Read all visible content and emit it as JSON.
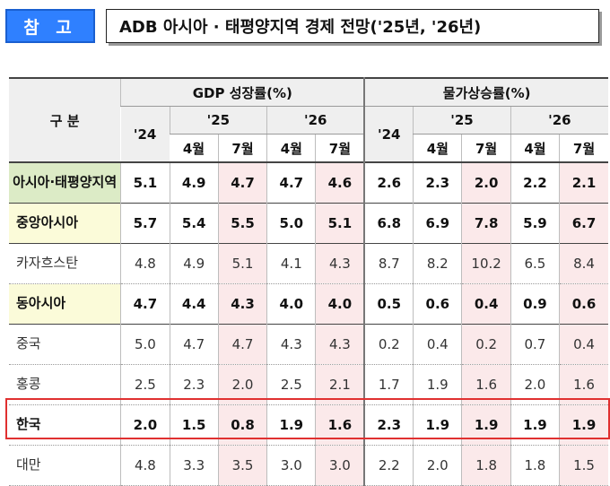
{
  "badge": "참 고",
  "title": "ADB 아시아 · 태평양지역 경제 전망('25년, '26년)",
  "header": {
    "category": "구  분",
    "gdp_group": "GDP 성장률(%)",
    "cpi_group": "물가상승률(%)",
    "years": [
      "'24",
      "'25",
      "'26"
    ],
    "months": [
      "4월",
      "7월"
    ]
  },
  "rows": [
    {
      "name": "아시아·태평양지역",
      "type": "region",
      "gdp": [
        "5.1",
        "4.9",
        "4.7",
        "4.7",
        "4.6"
      ],
      "cpi": [
        "2.6",
        "2.3",
        "2.0",
        "2.2",
        "2.1"
      ]
    },
    {
      "name": "중앙아시아",
      "type": "region",
      "gdp": [
        "5.7",
        "5.4",
        "5.5",
        "5.0",
        "5.1"
      ],
      "cpi": [
        "6.8",
        "6.9",
        "7.8",
        "5.9",
        "6.7"
      ]
    },
    {
      "name": "카자흐스탄",
      "type": "sub",
      "gdp": [
        "4.8",
        "4.9",
        "5.1",
        "4.1",
        "4.3"
      ],
      "cpi": [
        "8.7",
        "8.2",
        "10.2",
        "6.5",
        "8.4"
      ]
    },
    {
      "name": "동아시아",
      "type": "region",
      "gdp": [
        "4.7",
        "4.4",
        "4.3",
        "4.0",
        "4.0"
      ],
      "cpi": [
        "0.5",
        "0.6",
        "0.4",
        "0.9",
        "0.6"
      ]
    },
    {
      "name": "중국",
      "type": "sub",
      "gdp": [
        "5.0",
        "4.7",
        "4.7",
        "4.3",
        "4.3"
      ],
      "cpi": [
        "0.2",
        "0.4",
        "0.2",
        "0.7",
        "0.4"
      ]
    },
    {
      "name": "홍콩",
      "type": "sub",
      "gdp": [
        "2.5",
        "2.3",
        "2.0",
        "2.5",
        "2.1"
      ],
      "cpi": [
        "1.7",
        "1.9",
        "1.6",
        "2.0",
        "1.6"
      ]
    },
    {
      "name": "한국",
      "type": "korea",
      "gdp": [
        "2.0",
        "1.5",
        "0.8",
        "1.9",
        "1.6"
      ],
      "cpi": [
        "2.3",
        "1.9",
        "1.9",
        "1.9",
        "1.9"
      ]
    },
    {
      "name": "대만",
      "type": "sub",
      "gdp": [
        "4.8",
        "3.3",
        "3.5",
        "3.0",
        "3.0"
      ],
      "cpi": [
        "2.2",
        "2.0",
        "1.8",
        "1.8",
        "1.5"
      ]
    }
  ]
}
